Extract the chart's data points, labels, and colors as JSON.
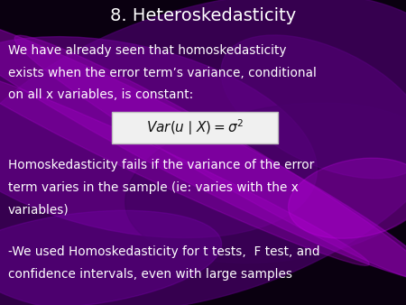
{
  "title": "8. Heteroskedasticity",
  "title_color": "#ffffff",
  "title_fontsize": 14,
  "background_color": "#0a0010",
  "body_text_color": "#ffffff",
  "body_fontsize": 9.8,
  "line1": "We have already seen that homoskedasticity",
  "line2": "exists when the error term’s variance, conditional",
  "line3": "on all x variables, is constant:",
  "formula_text": "$\\mathit{Var}(u\\mid X) = \\sigma^2$",
  "line4": "Homoskedasticity fails if the variance of the error",
  "line5": "term varies in the sample (ie: varies with the x",
  "line6": "variables)",
  "line7": "-We used Homoskedasticity for t tests,  F test, and",
  "line8": "confidence intervals, even with large samples",
  "figwidth": 4.5,
  "figheight": 3.38,
  "dpi": 100
}
